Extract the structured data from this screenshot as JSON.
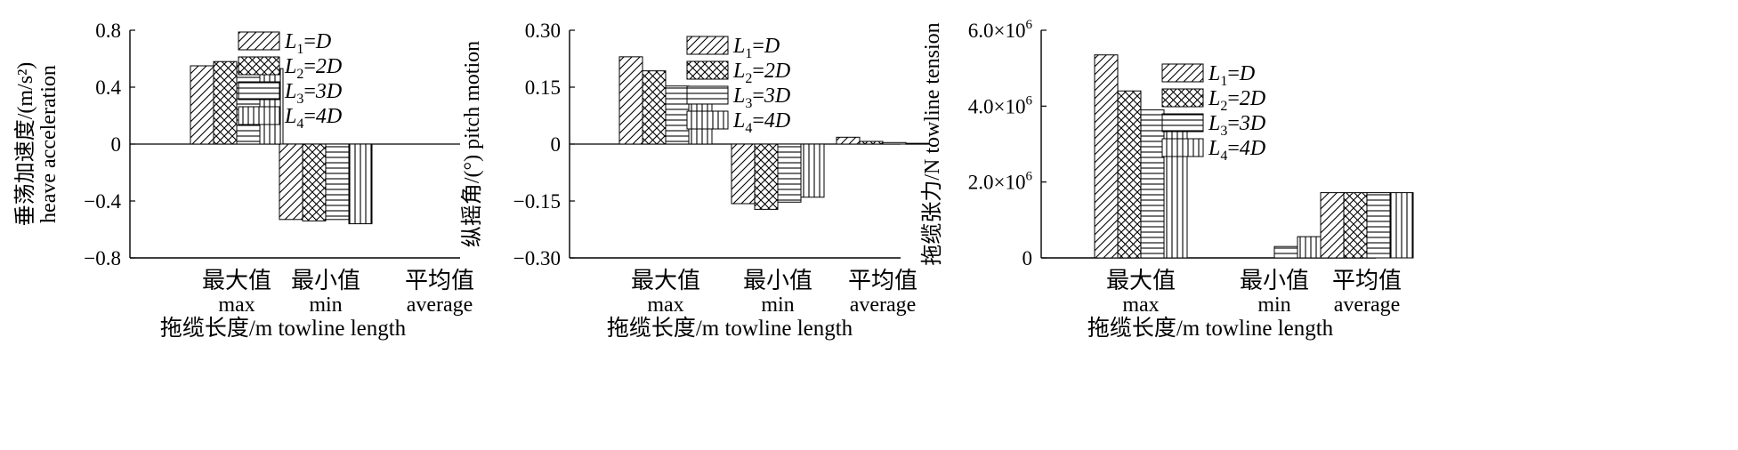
{
  "figure": {
    "panel_labels": []
  },
  "chart_data": [
    {
      "type": "bar",
      "title": "",
      "ylabel_cn": "垂荡加速度/(m/s²)",
      "ylabel_en": "heave acceleration",
      "xlabel": "拖缆长度/m towline length",
      "categories": [
        {
          "cn": "最大值",
          "en": "max"
        },
        {
          "cn": "最小值",
          "en": "min"
        },
        {
          "cn": "平均值",
          "en": "average"
        }
      ],
      "ylim": [
        -0.8,
        0.8
      ],
      "yticks": [
        {
          "value": 0.8,
          "label": "0.8"
        },
        {
          "value": 0.4,
          "label": "0.4"
        },
        {
          "value": 0,
          "label": "0"
        },
        {
          "value": -0.4,
          "label": "−0.4"
        },
        {
          "value": -0.8,
          "label": "−0.8"
        }
      ],
      "series": [
        {
          "name": "L1=D",
          "sym": "L",
          "sub": "1",
          "rhs": "D",
          "pattern": "diag",
          "values": [
            0.55,
            -0.53,
            0
          ]
        },
        {
          "name": "L2=2D",
          "sym": "L",
          "sub": "2",
          "rhs": "2D",
          "pattern": "cross",
          "values": [
            0.58,
            -0.54,
            0
          ]
        },
        {
          "name": "L3=3D",
          "sym": "L",
          "sub": "3",
          "rhs": "3D",
          "pattern": "horiz",
          "values": [
            0.55,
            -0.53,
            0
          ]
        },
        {
          "name": "L4=4D",
          "sym": "L",
          "sub": "4",
          "rhs": "4D",
          "pattern": "vert",
          "values": [
            0.53,
            -0.56,
            0
          ]
        }
      ],
      "legend_position": "top-center",
      "grid": false
    },
    {
      "type": "bar",
      "title": "",
      "ylabel_cn": "纵摇角/(°)",
      "ylabel_en": "pitch motion",
      "xlabel": "拖缆长度/m towline length",
      "categories": [
        {
          "cn": "最大值",
          "en": "max"
        },
        {
          "cn": "最小值",
          "en": "min"
        },
        {
          "cn": "平均值",
          "en": "average"
        }
      ],
      "ylim": [
        -0.3,
        0.3
      ],
      "yticks": [
        {
          "value": 0.3,
          "label": "0.30"
        },
        {
          "value": 0.15,
          "label": "0.15"
        },
        {
          "value": 0,
          "label": "0"
        },
        {
          "value": -0.15,
          "label": "−0.15"
        },
        {
          "value": -0.3,
          "label": "−0.30"
        }
      ],
      "series": [
        {
          "name": "L1=D",
          "sym": "L",
          "sub": "1",
          "rhs": "D",
          "pattern": "diag",
          "values": [
            0.23,
            -0.157,
            0.018
          ]
        },
        {
          "name": "L2=2D",
          "sym": "L",
          "sub": "2",
          "rhs": "2D",
          "pattern": "cross",
          "values": [
            0.193,
            -0.172,
            0.007
          ]
        },
        {
          "name": "L3=3D",
          "sym": "L",
          "sub": "3",
          "rhs": "3D",
          "pattern": "horiz",
          "values": [
            0.153,
            -0.153,
            0.004
          ]
        },
        {
          "name": "L4=4D",
          "sym": "L",
          "sub": "4",
          "rhs": "4D",
          "pattern": "vert",
          "values": [
            0.13,
            -0.14,
            0.002
          ]
        }
      ],
      "legend_position": "top-center",
      "grid": false
    },
    {
      "type": "bar",
      "title": "",
      "ylabel_cn": "拖缆张力/N",
      "ylabel_en": "towline tension",
      "xlabel": "拖缆长度/m towline length",
      "categories": [
        {
          "cn": "最大值",
          "en": "max"
        },
        {
          "cn": "最小值",
          "en": "min"
        },
        {
          "cn": "平均值",
          "en": "average"
        }
      ],
      "ylim": [
        0,
        6000000
      ],
      "yticks": [
        {
          "value": 6000000,
          "label": "6.0×10",
          "sup": "6"
        },
        {
          "value": 4000000,
          "label": "4.0×10",
          "sup": "6"
        },
        {
          "value": 2000000,
          "label": "2.0×10",
          "sup": "6"
        },
        {
          "value": 0,
          "label": "0"
        }
      ],
      "series": [
        {
          "name": "L1=D",
          "sym": "L",
          "sub": "1",
          "rhs": "D",
          "pattern": "diag",
          "values": [
            5350000,
            0,
            1720000
          ]
        },
        {
          "name": "L2=2D",
          "sym": "L",
          "sub": "2",
          "rhs": "2D",
          "pattern": "cross",
          "values": [
            4400000,
            0,
            1720000
          ]
        },
        {
          "name": "L3=3D",
          "sym": "L",
          "sub": "3",
          "rhs": "3D",
          "pattern": "horiz",
          "values": [
            3900000,
            300000,
            1720000
          ]
        },
        {
          "name": "L4=4D",
          "sym": "L",
          "sub": "4",
          "rhs": "4D",
          "pattern": "vert",
          "values": [
            3720000,
            560000,
            1720000
          ]
        }
      ],
      "legend_position": "top-right",
      "grid": false
    }
  ]
}
